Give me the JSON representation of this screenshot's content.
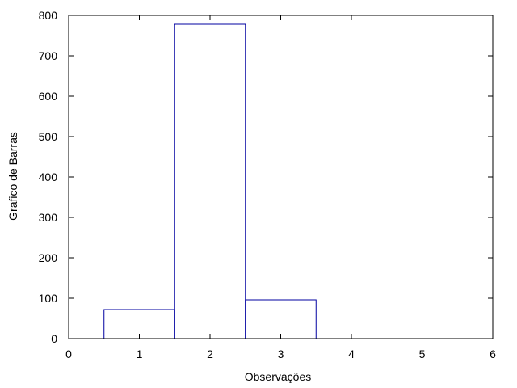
{
  "chart_data": {
    "type": "bar",
    "x": [
      1,
      2,
      3
    ],
    "values": [
      72,
      778,
      96
    ],
    "xlabel": "Observações",
    "ylabel": "Grafico de Barras",
    "xlim": [
      0,
      6
    ],
    "ylim": [
      0,
      800
    ],
    "xticks": [
      "0",
      "1",
      "2",
      "3",
      "4",
      "5",
      "6"
    ],
    "yticks": [
      "0",
      "100",
      "200",
      "300",
      "400",
      "500",
      "600",
      "700",
      "800"
    ],
    "bar_color": "#0000a0",
    "bar_fill": "none",
    "grid": false
  }
}
